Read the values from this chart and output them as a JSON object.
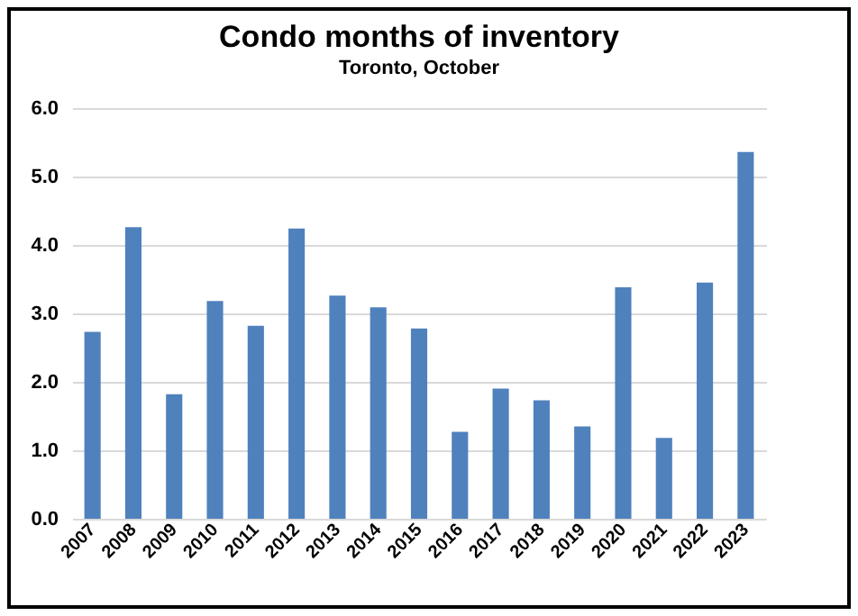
{
  "chart_data": {
    "type": "bar",
    "title": "Condo months of inventory",
    "subtitle": "Toronto, October",
    "categories": [
      "2007",
      "2008",
      "2009",
      "2010",
      "2011",
      "2012",
      "2013",
      "2014",
      "2015",
      "2016",
      "2017",
      "2018",
      "2019",
      "2020",
      "2021",
      "2022",
      "2023"
    ],
    "values": [
      2.73,
      4.26,
      1.82,
      3.18,
      2.82,
      4.24,
      3.26,
      3.09,
      2.78,
      1.27,
      1.9,
      1.73,
      1.35,
      3.38,
      1.18,
      3.45,
      5.36
    ],
    "color": "#4f81bd",
    "ylim": [
      0,
      6
    ],
    "yticks": [
      {
        "value": 0,
        "label": "0.0"
      },
      {
        "value": 1,
        "label": "1.0"
      },
      {
        "value": 2,
        "label": "2.0"
      },
      {
        "value": 3,
        "label": "3.0"
      },
      {
        "value": 4,
        "label": "4.0"
      },
      {
        "value": 5,
        "label": "5.0"
      },
      {
        "value": 6,
        "label": "6.0"
      }
    ],
    "grid": "y"
  }
}
